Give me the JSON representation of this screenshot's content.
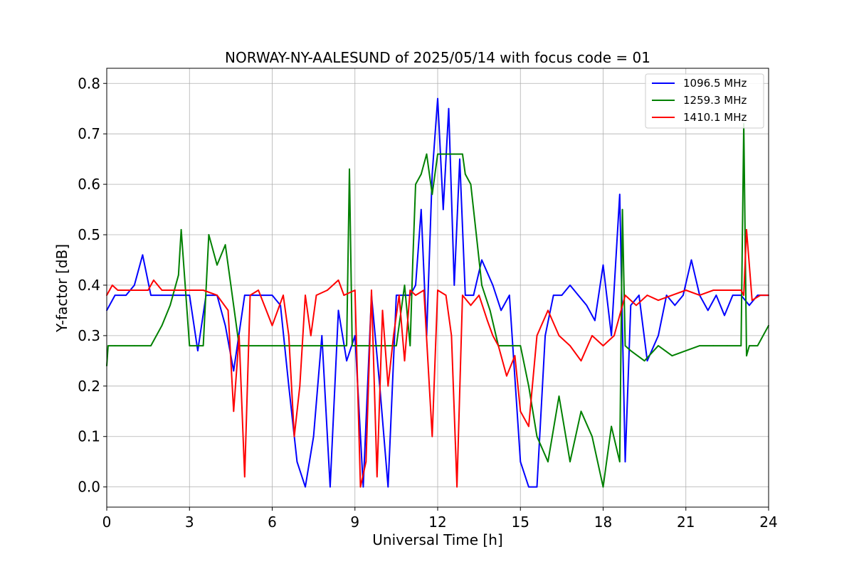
{
  "chart_data": {
    "type": "line",
    "title": "NORWAY-NY-AALESUND of 2025/05/14 with focus code = 01",
    "xlabel": "Universal Time [h]",
    "ylabel": "Y-factor [dB]",
    "xlim": [
      0,
      24
    ],
    "ylim": [
      -0.04,
      0.83
    ],
    "xticks": [
      0,
      3,
      6,
      9,
      12,
      15,
      18,
      21,
      24
    ],
    "yticks": [
      0.0,
      0.1,
      0.2,
      0.3,
      0.4,
      0.5,
      0.6,
      0.7,
      0.8
    ],
    "xtick_labels": [
      "0",
      "3",
      "6",
      "9",
      "12",
      "15",
      "18",
      "21",
      "24"
    ],
    "ytick_labels": [
      "0.0",
      "0.1",
      "0.2",
      "0.3",
      "0.4",
      "0.5",
      "0.6",
      "0.7",
      "0.8"
    ],
    "grid": true,
    "legend_position": "top-right",
    "series": [
      {
        "name": "1096.5 MHz",
        "color": "#0000ff",
        "x": [
          0,
          0.3,
          0.7,
          1.0,
          1.3,
          1.6,
          2.0,
          2.5,
          3.0,
          3.3,
          3.6,
          4.0,
          4.3,
          4.6,
          5.0,
          5.3,
          5.6,
          6.0,
          6.3,
          6.6,
          6.9,
          7.2,
          7.5,
          7.8,
          8.1,
          8.4,
          8.7,
          9.0,
          9.3,
          9.6,
          9.9,
          10.2,
          10.5,
          10.8,
          11.0,
          11.2,
          11.4,
          11.6,
          11.8,
          12.0,
          12.2,
          12.4,
          12.6,
          12.8,
          13.0,
          13.3,
          13.6,
          14.0,
          14.3,
          14.6,
          15.0,
          15.3,
          15.6,
          15.9,
          16.2,
          16.5,
          16.8,
          17.1,
          17.4,
          17.7,
          18.0,
          18.3,
          18.6,
          18.8,
          19.0,
          19.3,
          19.6,
          20.0,
          20.3,
          20.6,
          20.9,
          21.2,
          21.5,
          21.8,
          22.1,
          22.4,
          22.7,
          23.0,
          23.3,
          23.6,
          24.0
        ],
        "values": [
          0.35,
          0.38,
          0.38,
          0.4,
          0.46,
          0.38,
          0.38,
          0.38,
          0.38,
          0.27,
          0.38,
          0.38,
          0.32,
          0.23,
          0.38,
          0.38,
          0.38,
          0.38,
          0.36,
          0.2,
          0.05,
          0.0,
          0.1,
          0.3,
          0.0,
          0.35,
          0.25,
          0.3,
          0.0,
          0.38,
          0.2,
          0.0,
          0.38,
          0.38,
          0.38,
          0.4,
          0.55,
          0.3,
          0.62,
          0.77,
          0.55,
          0.75,
          0.4,
          0.65,
          0.38,
          0.38,
          0.45,
          0.4,
          0.35,
          0.38,
          0.05,
          0.0,
          0.0,
          0.3,
          0.38,
          0.38,
          0.4,
          0.38,
          0.36,
          0.33,
          0.44,
          0.3,
          0.58,
          0.05,
          0.36,
          0.38,
          0.25,
          0.3,
          0.38,
          0.36,
          0.38,
          0.45,
          0.38,
          0.35,
          0.38,
          0.34,
          0.38,
          0.38,
          0.36,
          0.38,
          0.38
        ]
      },
      {
        "name": "1259.3 MHz",
        "color": "#008000",
        "x": [
          0,
          0.05,
          0.3,
          1.0,
          1.6,
          2.0,
          2.3,
          2.6,
          2.7,
          3.0,
          3.5,
          3.7,
          4.0,
          4.3,
          4.5,
          4.8,
          5.0,
          5.5,
          6.0,
          7.0,
          8.0,
          8.7,
          8.8,
          8.9,
          9.0,
          9.5,
          10.0,
          10.5,
          10.8,
          11.0,
          11.1,
          11.2,
          11.4,
          11.6,
          11.8,
          12.0,
          12.3,
          12.6,
          12.9,
          13.0,
          13.2,
          13.4,
          13.6,
          13.9,
          14.2,
          14.5,
          14.8,
          15.0,
          15.3,
          15.6,
          16.0,
          16.4,
          16.8,
          17.2,
          17.6,
          18.0,
          18.3,
          18.6,
          18.7,
          18.8,
          19.0,
          19.5,
          20.0,
          20.5,
          21.0,
          21.5,
          22.0,
          22.5,
          23.0,
          23.1,
          23.2,
          23.3,
          23.6,
          24.0
        ],
        "values": [
          0.24,
          0.28,
          0.28,
          0.28,
          0.28,
          0.32,
          0.36,
          0.42,
          0.51,
          0.28,
          0.28,
          0.5,
          0.44,
          0.48,
          0.4,
          0.28,
          0.28,
          0.28,
          0.28,
          0.28,
          0.28,
          0.28,
          0.63,
          0.28,
          0.28,
          0.28,
          0.28,
          0.28,
          0.4,
          0.28,
          0.45,
          0.6,
          0.62,
          0.66,
          0.58,
          0.66,
          0.66,
          0.66,
          0.66,
          0.62,
          0.6,
          0.5,
          0.4,
          0.35,
          0.28,
          0.28,
          0.28,
          0.28,
          0.2,
          0.1,
          0.05,
          0.18,
          0.05,
          0.15,
          0.1,
          0.0,
          0.12,
          0.05,
          0.55,
          0.28,
          0.27,
          0.25,
          0.28,
          0.26,
          0.27,
          0.28,
          0.28,
          0.28,
          0.28,
          0.72,
          0.26,
          0.28,
          0.28,
          0.32
        ]
      },
      {
        "name": "1410.1 MHz",
        "color": "#ff0000",
        "x": [
          0,
          0.2,
          0.4,
          0.6,
          1.0,
          1.5,
          1.7,
          2.0,
          2.5,
          3.0,
          3.5,
          4.0,
          4.4,
          4.6,
          4.8,
          5.0,
          5.2,
          5.5,
          6.0,
          6.4,
          6.6,
          6.8,
          7.0,
          7.2,
          7.4,
          7.6,
          8.0,
          8.4,
          8.6,
          9.0,
          9.2,
          9.4,
          9.6,
          9.8,
          10.0,
          10.2,
          10.4,
          10.6,
          10.8,
          11.0,
          11.2,
          11.5,
          11.8,
          12.0,
          12.3,
          12.5,
          12.7,
          12.9,
          13.2,
          13.5,
          13.8,
          14.0,
          14.2,
          14.5,
          14.8,
          15.0,
          15.3,
          15.6,
          16.0,
          16.4,
          16.8,
          17.2,
          17.6,
          18.0,
          18.4,
          18.8,
          19.2,
          19.6,
          20.0,
          20.5,
          21.0,
          21.5,
          22.0,
          22.5,
          23.0,
          23.1,
          23.2,
          23.4,
          23.7,
          24.0
        ],
        "values": [
          0.38,
          0.4,
          0.39,
          0.39,
          0.39,
          0.39,
          0.41,
          0.39,
          0.39,
          0.39,
          0.39,
          0.38,
          0.35,
          0.15,
          0.3,
          0.02,
          0.38,
          0.39,
          0.32,
          0.38,
          0.3,
          0.1,
          0.2,
          0.38,
          0.3,
          0.38,
          0.39,
          0.41,
          0.38,
          0.39,
          0.0,
          0.05,
          0.39,
          0.02,
          0.35,
          0.2,
          0.3,
          0.38,
          0.25,
          0.39,
          0.38,
          0.39,
          0.1,
          0.39,
          0.38,
          0.3,
          0.0,
          0.38,
          0.36,
          0.38,
          0.33,
          0.3,
          0.28,
          0.22,
          0.26,
          0.15,
          0.12,
          0.3,
          0.35,
          0.3,
          0.28,
          0.25,
          0.3,
          0.28,
          0.3,
          0.38,
          0.36,
          0.38,
          0.37,
          0.38,
          0.39,
          0.38,
          0.39,
          0.39,
          0.39,
          0.38,
          0.51,
          0.37,
          0.38,
          0.38
        ]
      }
    ]
  }
}
